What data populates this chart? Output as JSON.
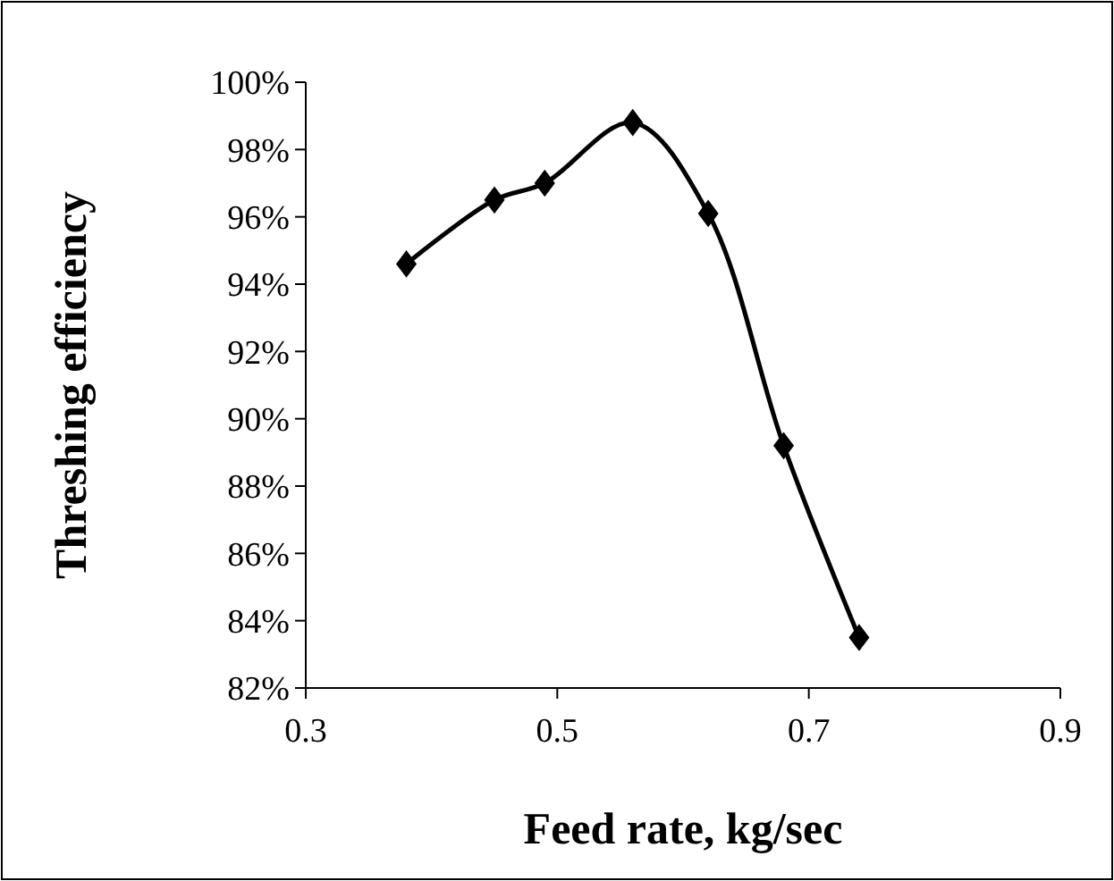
{
  "chart_data": {
    "type": "line",
    "xlabel": "Feed rate, kg/sec",
    "ylabel": "Threshing efficiency",
    "x": [
      0.38,
      0.45,
      0.49,
      0.56,
      0.62,
      0.68,
      0.74
    ],
    "series": [
      {
        "color": "#000000",
        "values": [
          94.6,
          96.5,
          97.0,
          98.8,
          96.1,
          89.2,
          83.5
        ]
      }
    ],
    "xlim": [
      0.3,
      0.9
    ],
    "xticks": [
      0.3,
      0.5,
      0.7,
      0.9
    ],
    "ylim": [
      82,
      100
    ],
    "yticks": [
      {
        "value": 82,
        "label": "82%"
      },
      {
        "value": 84,
        "label": "84%"
      },
      {
        "value": 86,
        "label": "86%"
      },
      {
        "value": 88,
        "label": "88%"
      },
      {
        "value": 90,
        "label": "90%"
      },
      {
        "value": 92,
        "label": "92%"
      },
      {
        "value": 94,
        "label": "94%"
      },
      {
        "value": 96,
        "label": "96%"
      },
      {
        "value": 98,
        "label": "98%"
      },
      {
        "value": 100,
        "label": "100%"
      }
    ],
    "grid": false,
    "marker": "diamond",
    "line_style": "solid"
  }
}
